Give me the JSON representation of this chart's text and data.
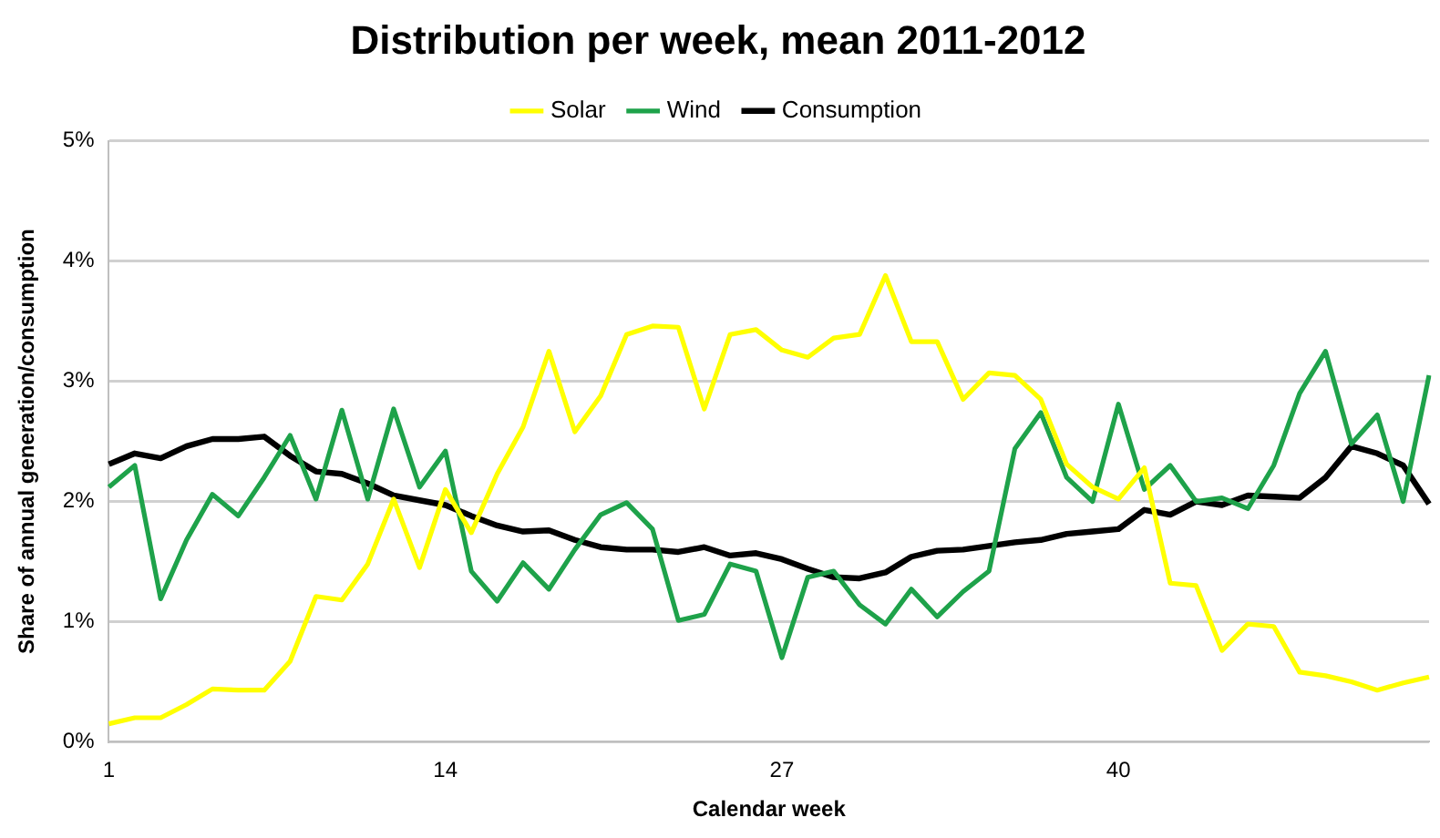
{
  "chart_data": {
    "type": "line",
    "title": "Distribution per week, mean 2011-2012",
    "xlabel": "Calendar week",
    "ylabel": "Share of annual generation/consumption",
    "categories": [
      "1",
      null,
      null,
      null,
      null,
      null,
      null,
      null,
      null,
      null,
      null,
      null,
      null,
      "14",
      null,
      null,
      null,
      null,
      null,
      null,
      null,
      null,
      null,
      null,
      null,
      null,
      "27",
      null,
      null,
      null,
      null,
      null,
      null,
      null,
      null,
      null,
      null,
      null,
      null,
      "40",
      null,
      null,
      null,
      null,
      null,
      null,
      null,
      null,
      null,
      null,
      null,
      null
    ],
    "series": [
      {
        "name": "Solar",
        "color": "#ffff00",
        "values": [
          0.15,
          0.2,
          0.2,
          0.31,
          0.44,
          0.43,
          0.43,
          0.67,
          1.21,
          1.18,
          1.48,
          2.02,
          1.45,
          2.1,
          1.74,
          2.23,
          2.62,
          3.25,
          2.58,
          2.88,
          3.39,
          3.46,
          3.45,
          2.77,
          3.39,
          3.43,
          3.26,
          3.2,
          3.36,
          3.39,
          3.88,
          3.33,
          3.33,
          2.85,
          3.07,
          3.05,
          2.85,
          2.31,
          2.12,
          2.02,
          2.28,
          1.32,
          1.3,
          0.76,
          0.98,
          0.96,
          0.58,
          0.55,
          0.5,
          0.43,
          0.49,
          0.54
        ]
      },
      {
        "name": "Wind",
        "color": "#1ea24a",
        "values": [
          2.12,
          2.3,
          1.19,
          1.68,
          2.06,
          1.88,
          2.2,
          2.55,
          2.02,
          2.76,
          2.02,
          2.77,
          2.12,
          2.42,
          1.42,
          1.17,
          1.49,
          1.27,
          1.6,
          1.89,
          1.99,
          1.77,
          1.01,
          1.06,
          1.48,
          1.42,
          0.7,
          1.37,
          1.42,
          1.14,
          0.98,
          1.27,
          1.04,
          1.25,
          1.42,
          2.44,
          2.74,
          2.2,
          2.0,
          2.81,
          2.1,
          2.3,
          2.0,
          2.03,
          1.94,
          2.3,
          2.9,
          3.25,
          2.48,
          2.72,
          2.0,
          3.05
        ]
      },
      {
        "name": "Consumption",
        "color": "#000000",
        "values": [
          2.31,
          2.4,
          2.36,
          2.46,
          2.52,
          2.52,
          2.54,
          2.38,
          2.25,
          2.23,
          2.15,
          2.05,
          2.01,
          1.97,
          1.88,
          1.8,
          1.75,
          1.76,
          1.68,
          1.62,
          1.6,
          1.6,
          1.58,
          1.62,
          1.55,
          1.57,
          1.52,
          1.44,
          1.37,
          1.36,
          1.41,
          1.54,
          1.59,
          1.6,
          1.63,
          1.66,
          1.68,
          1.73,
          1.75,
          1.77,
          1.93,
          1.89,
          2.0,
          1.97,
          2.05,
          2.04,
          2.03,
          2.2,
          2.46,
          2.4,
          2.3,
          1.98
        ]
      }
    ],
    "ylim": [
      0,
      5
    ],
    "yticks": [
      {
        "value": 0,
        "label": "0%"
      },
      {
        "value": 1,
        "label": "1%"
      },
      {
        "value": 2,
        "label": "2%"
      },
      {
        "value": 3,
        "label": "3%"
      },
      {
        "value": 4,
        "label": "4%"
      },
      {
        "value": 5,
        "label": "5%"
      }
    ],
    "grid": "y",
    "legend": "top",
    "marker": "none",
    "line_style": "solid"
  }
}
